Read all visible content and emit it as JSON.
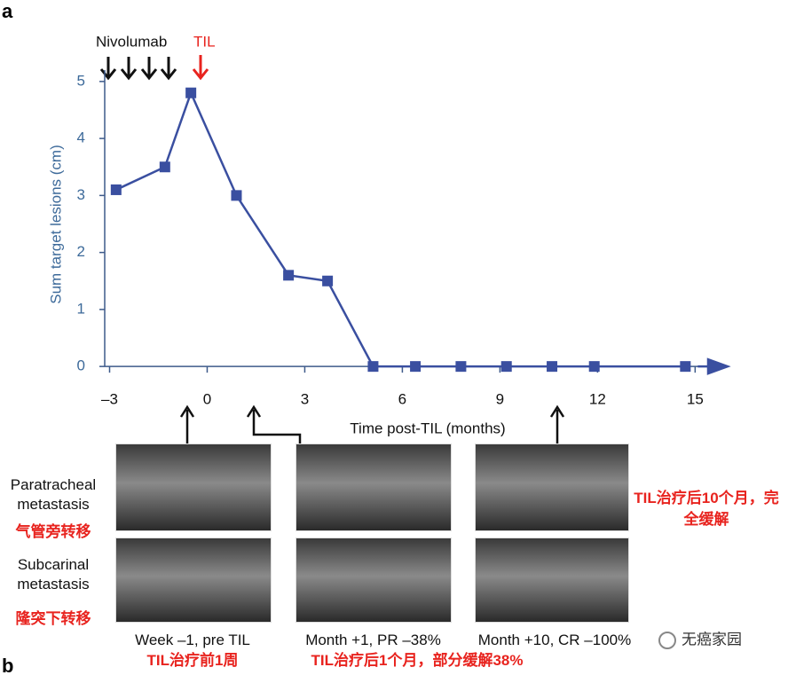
{
  "panel_label": "a",
  "panel_label_next": "b",
  "chart_data": {
    "type": "line",
    "y_label": "Sum target lesions (cm)",
    "x_label": "Time post-TIL (months)",
    "annotations": [
      "Nivolumab",
      "TIL"
    ],
    "x": [
      -2.8,
      -1.3,
      -0.5,
      0.9,
      2.5,
      3.7,
      5.1,
      6.4,
      7.8,
      9.2,
      10.6,
      11.9,
      14.7
    ],
    "series": [
      {
        "color": "#3a4fa0",
        "values": [
          3.1,
          3.5,
          4.8,
          3.0,
          1.6,
          1.5,
          0,
          0,
          0,
          0,
          0,
          0,
          0
        ]
      }
    ],
    "xlim": [
      -3.15,
      16
    ],
    "ylim": [
      -0.2,
      5.2
    ],
    "xticks": [
      {
        "value": -3,
        "label": "–3"
      },
      0,
      3,
      6,
      9,
      12,
      15
    ],
    "yticks": [
      0,
      1,
      2,
      3,
      4,
      5
    ]
  },
  "images": {
    "row_labels": [
      "Paratracheal metastasis",
      "Subcarinal metastasis"
    ],
    "row_labels_cn": [
      "气管旁转移",
      "隆突下转移"
    ],
    "captions": [
      "Week –1, pre TIL",
      "Month +1, PR –38%",
      "Month +10, CR –100%"
    ],
    "captions_cn": [
      "TIL治疗前1周",
      "TIL治疗后1个月，部分缓解38%",
      "TIL治疗后10个月，完全缓解"
    ]
  },
  "watermark": "无癌家园"
}
